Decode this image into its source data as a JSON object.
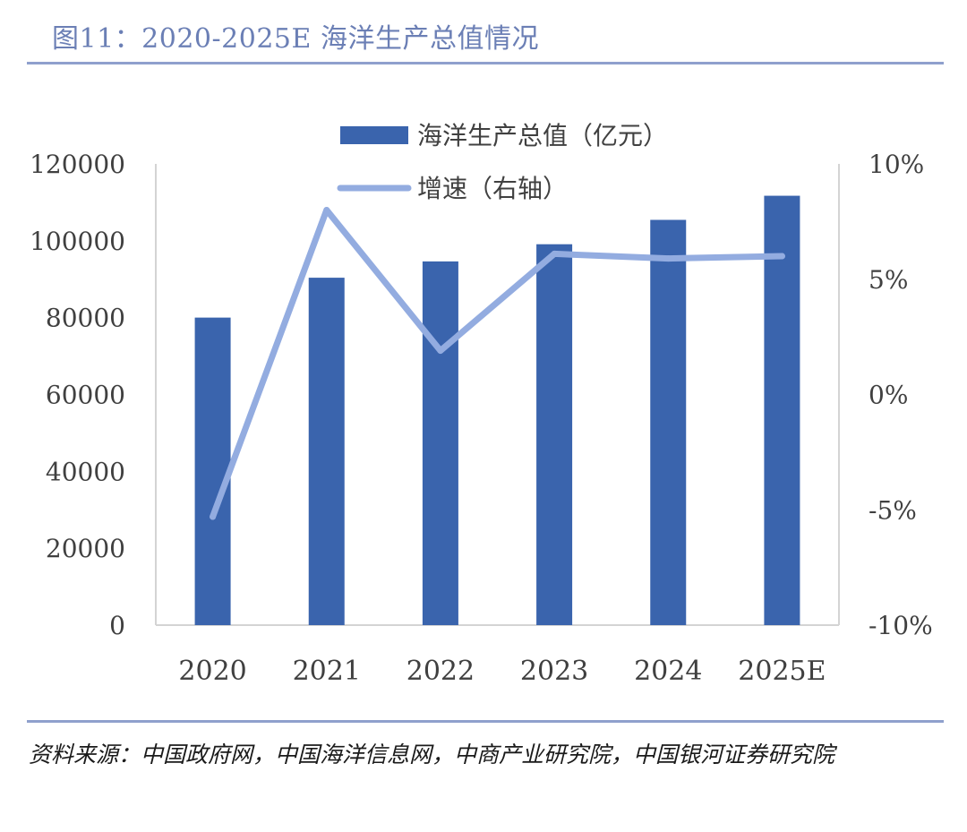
{
  "figure": {
    "title": "图11：2020-2025E 海洋生产总值情况",
    "source": "资料来源：中国政府网，中国海洋信息网，中商产业研究院，中国银河证券研究院"
  },
  "chart_data": {
    "type": "bar",
    "categories": [
      "2020",
      "2021",
      "2022",
      "2023",
      "2024",
      "2025E"
    ],
    "series": [
      {
        "name": "海洋生产总值（亿元）",
        "type": "bar",
        "axis": "left",
        "values": [
          80010,
          90385,
          94628,
          99097,
          105438,
          111712
        ]
      },
      {
        "name": "增速（右轴）",
        "type": "line",
        "axis": "right",
        "values": [
          -5.3,
          8.0,
          1.9,
          6.1,
          5.9,
          6.0
        ]
      }
    ],
    "left_axis": {
      "min": 0,
      "max": 120000,
      "ticks": [
        "0",
        "20000",
        "40000",
        "60000",
        "80000",
        "100000",
        "120000"
      ]
    },
    "right_axis": {
      "min": -10,
      "max": 10,
      "ticks": [
        "-10%",
        "-5%",
        "0%",
        "5%",
        "10%"
      ]
    },
    "legend": [
      "海洋生产总值（亿元）",
      "增速（右轴）"
    ],
    "colors": {
      "bar": "#3a64ad",
      "line": "#93ace0",
      "axis": "#d4d4d4",
      "text": "#404040"
    }
  }
}
